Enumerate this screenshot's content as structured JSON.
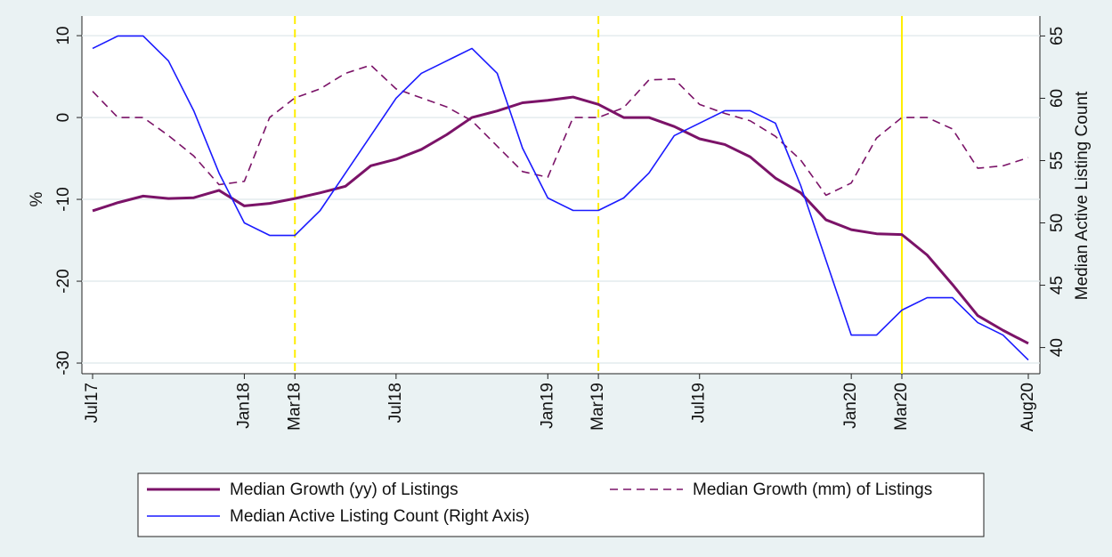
{
  "chart_data": {
    "type": "line",
    "categories": [
      "Jul17",
      null,
      null,
      null,
      null,
      null,
      "Jan18",
      null,
      "Mar18",
      null,
      null,
      null,
      "Jul18",
      null,
      null,
      null,
      null,
      null,
      "Jan19",
      null,
      "Mar19",
      null,
      null,
      null,
      "Jul19",
      null,
      null,
      null,
      null,
      null,
      "Jan20",
      null,
      "Mar20",
      null,
      null,
      null,
      null,
      "Aug20"
    ],
    "y_label": "%",
    "y2_label": "Median Active Listing Count",
    "ylim": [
      -31.3,
      12.4
    ],
    "yticks": [
      10,
      0,
      -10,
      -20,
      -30
    ],
    "y2lim": [
      37.9,
      66.6
    ],
    "y2ticks": [
      65,
      60,
      55,
      50,
      45,
      40
    ],
    "grid": true,
    "legend_columns": 2,
    "series": [
      {
        "name": "Median Growth (yy) of Listings",
        "color": "#7b1368",
        "dashed": false,
        "width": 3,
        "values": [
          -11.4,
          -10.4,
          -9.6,
          -9.9,
          -9.8,
          -8.9,
          -10.8,
          -10.5,
          -9.9,
          -9.2,
          -8.4,
          -5.9,
          -5.1,
          -3.9,
          -2.1,
          0,
          0.8,
          1.8,
          2.1,
          2.5,
          1.6,
          0,
          0,
          -1.1,
          -2.6,
          -3.3,
          -4.8,
          -7.4,
          -9.2,
          -12.5,
          -13.7,
          -14.2,
          -14.3,
          -16.8,
          -20.4,
          -24.2,
          -26,
          -27.6
        ]
      },
      {
        "name": "Median Growth (mm) of Listings",
        "color": "#7b1368",
        "dashed": true,
        "width": 1.6,
        "values": [
          3.2,
          0,
          0,
          -2.2,
          -4.7,
          -8.2,
          -7.8,
          0,
          2.4,
          3.5,
          5.4,
          6.4,
          3.5,
          2.4,
          1.3,
          -0.4,
          -3.5,
          -6.6,
          -7.3,
          0,
          0,
          1.2,
          4.6,
          4.7,
          1.6,
          0.5,
          -0.4,
          -2.3,
          -5.2,
          -9.5,
          -8,
          -2.5,
          0,
          0,
          -1.4,
          -6.2,
          -5.9,
          -4.9
        ]
      },
      {
        "name": "Median Active Listing Count (Right Axis)",
        "color": "#1a1aff",
        "dashed": false,
        "width": 1.6,
        "axis": "y2",
        "values": [
          64,
          65,
          65,
          63,
          59,
          54,
          50,
          49,
          49,
          51,
          54,
          57,
          60,
          62,
          63,
          64,
          62,
          56,
          52,
          51,
          51,
          52,
          54,
          57,
          58,
          59,
          59,
          58,
          53,
          47,
          41,
          41,
          43,
          44,
          44,
          42,
          41,
          39
        ]
      }
    ],
    "vlines": [
      {
        "at": 8,
        "color": "#ffee00",
        "dashed": true
      },
      {
        "at": 20,
        "color": "#ffee00",
        "dashed": true
      },
      {
        "at": 32,
        "color": "#ffee00",
        "dashed": false
      }
    ]
  }
}
